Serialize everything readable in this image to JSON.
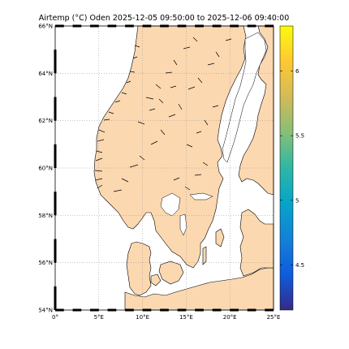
{
  "title": "Airtemp (°C)  Oden 2025-12-05 09:50:00  to  2025-12-06 09:40:00",
  "map": {
    "projection": "equirectangular",
    "lon_range": [
      0,
      25
    ],
    "lat_range": [
      54,
      66
    ],
    "grid": true,
    "land_color": "#fcd8b0",
    "sea_color": "#ffffff",
    "coast_color": "#000000",
    "lon_ticks": [
      {
        "value": 0,
        "label": "0°"
      },
      {
        "value": 5,
        "label": "5°E"
      },
      {
        "value": 10,
        "label": "10°E"
      },
      {
        "value": 15,
        "label": "15°E"
      },
      {
        "value": 20,
        "label": "20°E"
      },
      {
        "value": 25,
        "label": "25°E"
      }
    ],
    "lat_ticks": [
      {
        "value": 54,
        "label": "54°N"
      },
      {
        "value": 56,
        "label": "56°N"
      },
      {
        "value": 58,
        "label": "58°N"
      },
      {
        "value": 60,
        "label": "60°N"
      },
      {
        "value": 62,
        "label": "62°N"
      },
      {
        "value": 64,
        "label": "64°N"
      },
      {
        "value": 66,
        "label": "66°N"
      }
    ]
  },
  "colorbar": {
    "colormap": "parula",
    "range": [
      4.15,
      6.35
    ],
    "ticks": [
      {
        "value": 4.5,
        "label": "4.5"
      },
      {
        "value": 5,
        "label": "5"
      },
      {
        "value": 5.5,
        "label": "5.5"
      },
      {
        "value": 6,
        "label": "6"
      }
    ],
    "colors": [
      "#352a87",
      "#0f5cdd",
      "#1481d6",
      "#06a4ca",
      "#2eb7a4",
      "#87bf77",
      "#d1bb59",
      "#fec832",
      "#f9fb0e"
    ]
  }
}
